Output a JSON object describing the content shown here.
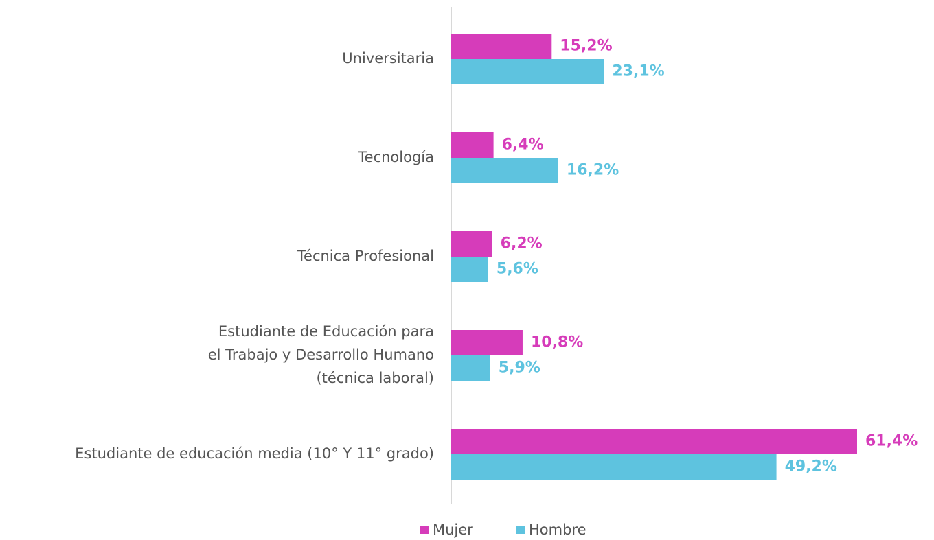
{
  "chart_data": {
    "type": "bar",
    "orientation": "horizontal",
    "categories": [
      "Universitaria",
      "Tecnología",
      "Técnica Profesional",
      "Estudiante de Educación para\nel Trabajo y Desarrollo Humano\n(técnica laboral)",
      "Estudiante de educación media (10° Y 11° grado)"
    ],
    "series": [
      {
        "name": "Mujer",
        "color": "#d63cba",
        "values": [
          15.2,
          6.4,
          6.2,
          10.8,
          61.4
        ],
        "value_labels": [
          "15,2%",
          "6,4%",
          "6,2%",
          "10,8%",
          "61,4%"
        ]
      },
      {
        "name": "Hombre",
        "color": "#5ec3df",
        "values": [
          23.1,
          16.2,
          5.6,
          5.9,
          49.2
        ],
        "value_labels": [
          "23,1%",
          "16,2%",
          "5,6%",
          "5,9%",
          "49,2%"
        ]
      }
    ],
    "legend": "bottom"
  }
}
